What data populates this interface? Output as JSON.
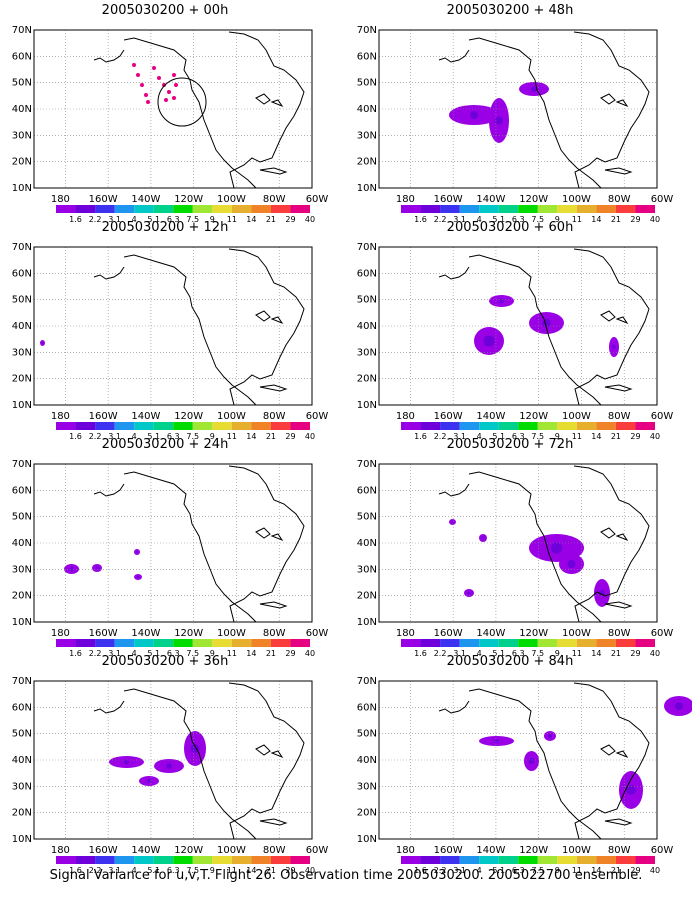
{
  "caption": "Signal Variance for u,v,T. Flight 26. Observation time 2005030200. 2005022700 ensemble.",
  "lat_labels": [
    "70N",
    "60N",
    "50N",
    "40N",
    "30N",
    "20N",
    "10N"
  ],
  "lon_labels": [
    "180",
    "160W",
    "140W",
    "120W",
    "100W",
    "80W",
    "60W"
  ],
  "colorbar": {
    "labels": [
      "1.6",
      "2.2",
      "3.1",
      "4",
      "5.1",
      "6.3",
      "7.5",
      "9",
      "11",
      "14",
      "21",
      "29",
      "40"
    ],
    "colors": [
      "#9a00e6",
      "#6e00dc",
      "#3c32f0",
      "#1e96f0",
      "#00c8c8",
      "#00d28c",
      "#00dc00",
      "#a0e632",
      "#e6dc32",
      "#e6af2d",
      "#f08228",
      "#fa3c3c",
      "#e60082"
    ]
  },
  "panels": [
    {
      "title": "2005030200 + 00h"
    },
    {
      "title": "2005030200 + 48h"
    },
    {
      "title": "2005030200 + 12h"
    },
    {
      "title": "2005030200 + 60h"
    },
    {
      "title": "2005030200 + 24h"
    },
    {
      "title": "2005030200 + 72h"
    },
    {
      "title": "2005030200 + 36h"
    },
    {
      "title": "2005030200 + 84h"
    }
  ]
}
